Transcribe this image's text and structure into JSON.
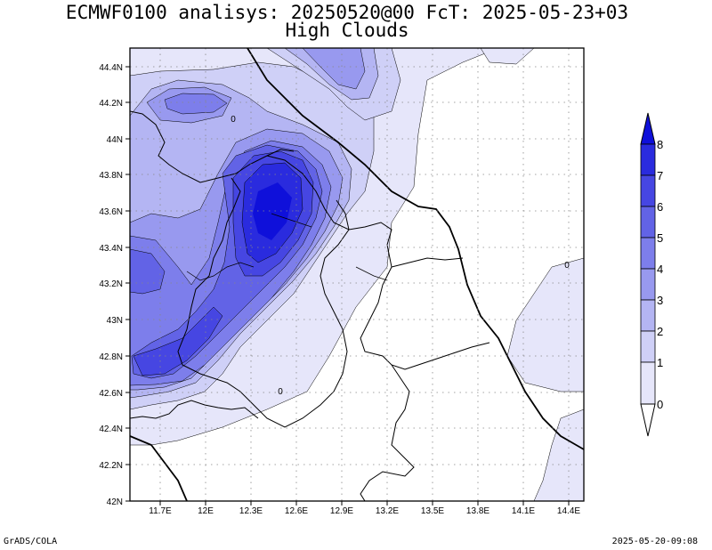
{
  "title_line1": "ECMWF0100 analisys: 20250520@00 FcT: 2025-05-23+03",
  "title_line2": "High Clouds",
  "footer_left": "GrADS/COLA",
  "footer_right": "2025-05-20-09:08",
  "map": {
    "lon_ticks": [
      "11.7E",
      "12E",
      "12.3E",
      "12.6E",
      "12.9E",
      "13.2E",
      "13.5E",
      "13.8E",
      "14.1E",
      "14.4E"
    ],
    "lat_ticks": [
      "44.4N",
      "44.2N",
      "44N",
      "43.8N",
      "43.6N",
      "43.4N",
      "43.2N",
      "43N",
      "42.8N",
      "42.6N",
      "42.4N",
      "42.2N",
      "42N"
    ],
    "contour_labels": [
      "0",
      "0",
      "0"
    ],
    "field": "high_clouds",
    "units_scale": "octas"
  },
  "colorbar": {
    "levels": [
      "0",
      "1",
      "2",
      "3",
      "4",
      "5",
      "6",
      "7",
      "8"
    ],
    "colors": [
      "#ffffff",
      "#e6e6fa",
      "#cfd0f7",
      "#b4b5f3",
      "#9899ef",
      "#7d7eeb",
      "#6263e6",
      "#4646e2",
      "#2a2bde",
      "#0f10da"
    ]
  }
}
